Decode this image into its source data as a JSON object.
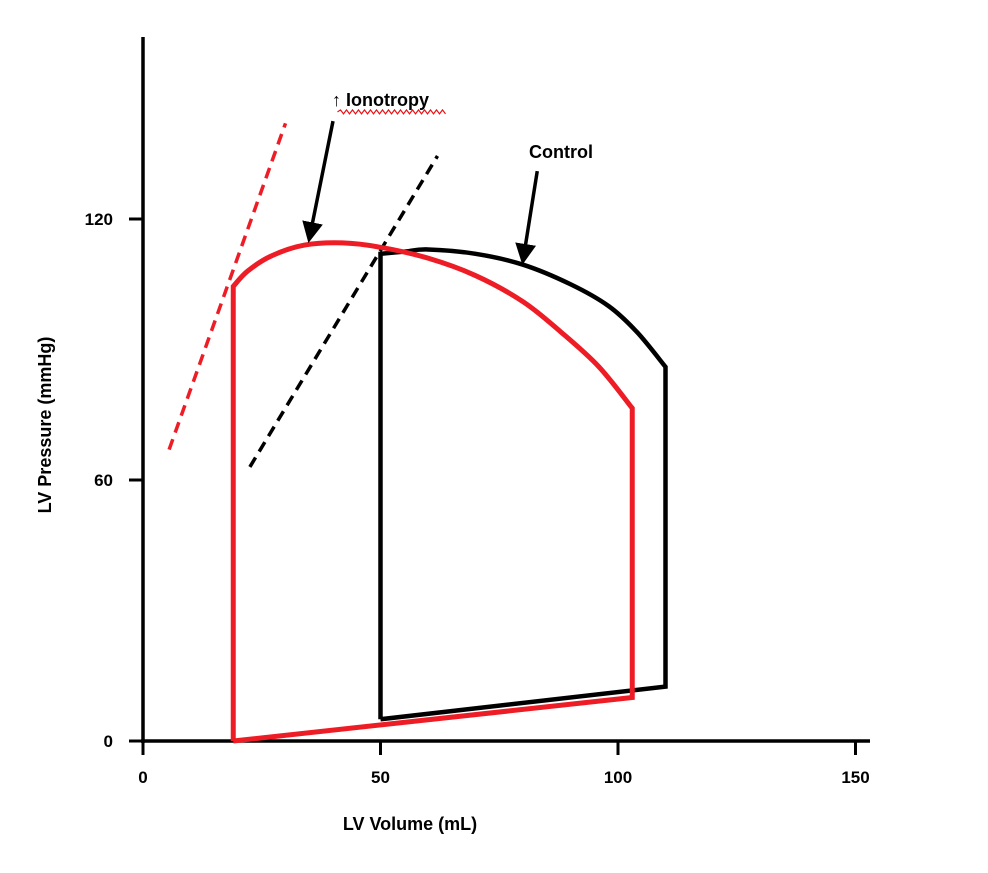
{
  "chart_data": {
    "type": "line",
    "title": "",
    "xlabel": "LV Volume (mL)",
    "ylabel": "LV Pressure (mmHg)",
    "xlim": [
      0,
      150
    ],
    "ylim": [
      0,
      140
    ],
    "x_ticks": [
      0,
      50,
      100,
      150
    ],
    "y_ticks": [
      0,
      60,
      120
    ],
    "grid": false,
    "series": [
      {
        "name": "Control",
        "kind": "pressure-volume loop",
        "color": "#000000",
        "points": [
          [
            50,
            5
          ],
          [
            110,
            12.5
          ],
          [
            110,
            86
          ],
          [
            104,
            94
          ],
          [
            98,
            100
          ],
          [
            90,
            105
          ],
          [
            80,
            109.5
          ],
          [
            70,
            112
          ],
          [
            60,
            113
          ],
          [
            55,
            112.5
          ],
          [
            50,
            112
          ],
          [
            50,
            5
          ]
        ]
      },
      {
        "name": "↑ Ionotropy",
        "kind": "pressure-volume loop",
        "color": "#ee1c25",
        "points": [
          [
            19,
            0
          ],
          [
            103,
            10
          ],
          [
            103,
            76.5
          ],
          [
            96,
            86
          ],
          [
            88,
            94
          ],
          [
            80,
            101
          ],
          [
            70,
            107
          ],
          [
            60,
            111
          ],
          [
            50,
            113.5
          ],
          [
            42,
            114.5
          ],
          [
            34,
            114
          ],
          [
            27,
            111.5
          ],
          [
            22,
            108
          ],
          [
            19,
            104.5
          ],
          [
            19,
            0
          ]
        ]
      }
    ],
    "reference_lines": [
      {
        "name": "control-espvr",
        "style": "dashed",
        "color": "#000000",
        "from": [
          22.5,
          63
        ],
        "to": [
          62,
          134.5
        ]
      },
      {
        "name": "ionotropy-espvr",
        "style": "dashed",
        "color": "#ee1c25",
        "from": [
          5.5,
          67
        ],
        "to": [
          30,
          142
        ]
      }
    ],
    "annotations": [
      {
        "text": "Control",
        "label_at": [
          88,
          134
        ],
        "arrow_from": [
          83,
          131
        ],
        "arrow_to": [
          80,
          109.5
        ],
        "color": "#000000"
      },
      {
        "text": "↑ Ionotropy",
        "label_at": [
          50,
          146
        ],
        "arrow_from": [
          40,
          142.5
        ],
        "arrow_to": [
          35,
          114.5
        ],
        "color": "#000000",
        "squiggle_underline": "#e3171c"
      }
    ]
  }
}
